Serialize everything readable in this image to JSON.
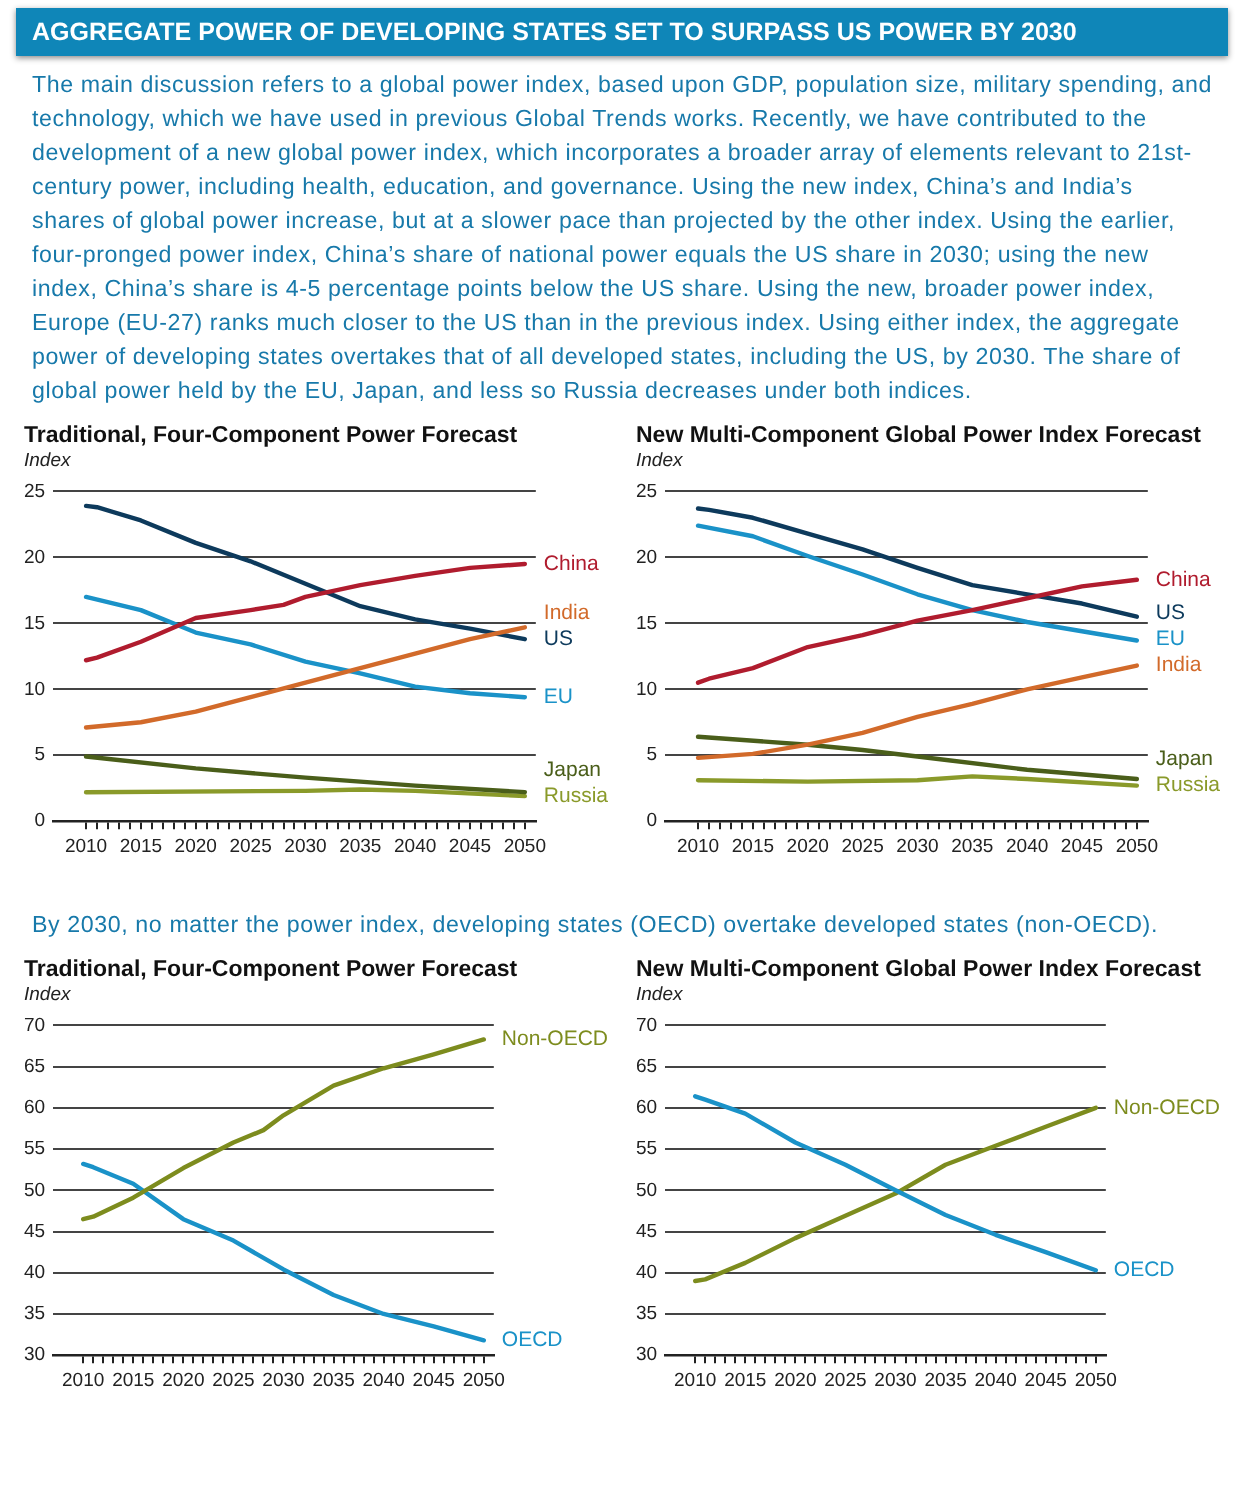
{
  "chart_data": [
    {
      "type": "line",
      "title": "Traditional, Four-Component Power Forecast",
      "ylabel": "Index",
      "annotations": [
        "AGGREGATE POWER OF DEVELOPING STATES SET TO SURPASS US POWER BY 2030",
        "The main discussion refers to a global power index, based upon GDP, population size, military spending, and technology, which we have used in previous Global Trends works. Recently, we have contributed to the development of a new global power index, which incorporates a broader array of elements relevant to 21st-century power, including health, education, and governance. Using the new index, China’s and India’s shares of global power increase, but at a slower pace than projected by the other index. Using the earlier, four-pronged power index, China’s share of national power equals the US share in 2030; using the new index, China’s share is 4-5 percentage points below the US share. Using the new, broader power index, Europe (EU-27) ranks much closer to the US than in the previous index. Using either index, the aggregate power of developing states overtakes that of all developed states, including the US, by 2030. The share of global power held by the EU, Japan, and less so Russia decreases under both indices."
      ],
      "xlim": [
        2007,
        2051
      ],
      "ylim": [
        0,
        25
      ],
      "yticks": [
        0,
        5,
        10,
        15,
        20,
        25
      ],
      "xticks": [
        {
          "value": 2010,
          "label": "2010"
        },
        {
          "value": 2011,
          "label": null
        },
        {
          "value": 2012,
          "label": null
        },
        {
          "value": 2013,
          "label": null
        },
        {
          "value": 2014,
          "label": null
        },
        {
          "value": 2015,
          "label": "2015"
        },
        {
          "value": 2016,
          "label": null
        },
        {
          "value": 2017,
          "label": null
        },
        {
          "value": 2018,
          "label": null
        },
        {
          "value": 2019,
          "label": null
        },
        {
          "value": 2020,
          "label": "2020"
        },
        {
          "value": 2021,
          "label": null
        },
        {
          "value": 2022,
          "label": null
        },
        {
          "value": 2023,
          "label": null
        },
        {
          "value": 2024,
          "label": null
        },
        {
          "value": 2025,
          "label": "2025"
        },
        {
          "value": 2026,
          "label": null
        },
        {
          "value": 2027,
          "label": null
        },
        {
          "value": 2028,
          "label": null
        },
        {
          "value": 2029,
          "label": null
        },
        {
          "value": 2030,
          "label": "2030"
        },
        {
          "value": 2031,
          "label": null
        },
        {
          "value": 2032,
          "label": null
        },
        {
          "value": 2033,
          "label": null
        },
        {
          "value": 2034,
          "label": null
        },
        {
          "value": 2035,
          "label": "2035"
        },
        {
          "value": 2036,
          "label": null
        },
        {
          "value": 2037,
          "label": null
        },
        {
          "value": 2038,
          "label": null
        },
        {
          "value": 2039,
          "label": null
        },
        {
          "value": 2040,
          "label": "2040"
        },
        {
          "value": 2041,
          "label": null
        },
        {
          "value": 2042,
          "label": null
        },
        {
          "value": 2043,
          "label": null
        },
        {
          "value": 2044,
          "label": null
        },
        {
          "value": 2045,
          "label": "2045"
        },
        {
          "value": 2046,
          "label": null
        },
        {
          "value": 2047,
          "label": null
        },
        {
          "value": 2048,
          "label": null
        },
        {
          "value": 2049,
          "label": null
        },
        {
          "value": 2050,
          "label": "2050"
        }
      ],
      "grid": "y",
      "series": [
        {
          "name": "China",
          "color": "#b01c2e",
          "x": [
            2010,
            2011,
            2015,
            2020,
            2025,
            2028,
            2030,
            2035,
            2040,
            2045,
            2050
          ],
          "values": [
            12.2,
            12.4,
            13.6,
            15.4,
            16.0,
            16.4,
            17.0,
            17.9,
            18.6,
            19.2,
            19.5
          ]
        },
        {
          "name": "India",
          "color": "#d26a2a",
          "x": [
            2010,
            2015,
            2020,
            2025,
            2030,
            2035,
            2040,
            2045,
            2050
          ],
          "values": [
            7.1,
            7.5,
            8.3,
            9.4,
            10.5,
            11.6,
            12.7,
            13.8,
            14.7
          ]
        },
        {
          "name": "US",
          "color": "#0d3a5c",
          "x": [
            2010,
            2011,
            2015,
            2020,
            2025,
            2030,
            2035,
            2040,
            2045,
            2050
          ],
          "values": [
            23.9,
            23.8,
            22.8,
            21.1,
            19.7,
            18.0,
            16.3,
            15.3,
            14.6,
            13.8
          ]
        },
        {
          "name": "EU",
          "color": "#1a92c8",
          "x": [
            2010,
            2015,
            2020,
            2025,
            2030,
            2035,
            2040,
            2045,
            2050
          ],
          "values": [
            17.0,
            16.0,
            14.3,
            13.4,
            12.1,
            11.2,
            10.2,
            9.7,
            9.4
          ]
        },
        {
          "name": "Japan",
          "color": "#4a5e1a",
          "x": [
            2010,
            2020,
            2030,
            2040,
            2050
          ],
          "values": [
            4.9,
            4.0,
            3.3,
            2.7,
            2.2
          ]
        },
        {
          "name": "Russia",
          "color": "#8a9a2a",
          "x": [
            2010,
            2030,
            2035,
            2040,
            2050
          ],
          "values": [
            2.2,
            2.3,
            2.4,
            2.3,
            1.9
          ]
        }
      ]
    },
    {
      "type": "line",
      "title": "New Multi-Component Global Power Index Forecast",
      "ylabel": "Index",
      "xlim": [
        2007,
        2051
      ],
      "ylim": [
        0,
        25
      ],
      "yticks": [
        0,
        5,
        10,
        15,
        20,
        25
      ],
      "xticks": [
        {
          "value": 2010,
          "label": "2010"
        },
        {
          "value": 2011,
          "label": null
        },
        {
          "value": 2012,
          "label": null
        },
        {
          "value": 2013,
          "label": null
        },
        {
          "value": 2014,
          "label": null
        },
        {
          "value": 2015,
          "label": "2015"
        },
        {
          "value": 2016,
          "label": null
        },
        {
          "value": 2017,
          "label": null
        },
        {
          "value": 2018,
          "label": null
        },
        {
          "value": 2019,
          "label": null
        },
        {
          "value": 2020,
          "label": "2020"
        },
        {
          "value": 2021,
          "label": null
        },
        {
          "value": 2022,
          "label": null
        },
        {
          "value": 2023,
          "label": null
        },
        {
          "value": 2024,
          "label": null
        },
        {
          "value": 2025,
          "label": "2025"
        },
        {
          "value": 2026,
          "label": null
        },
        {
          "value": 2027,
          "label": null
        },
        {
          "value": 2028,
          "label": null
        },
        {
          "value": 2029,
          "label": null
        },
        {
          "value": 2030,
          "label": "2030"
        },
        {
          "value": 2031,
          "label": null
        },
        {
          "value": 2032,
          "label": null
        },
        {
          "value": 2033,
          "label": null
        },
        {
          "value": 2034,
          "label": null
        },
        {
          "value": 2035,
          "label": "2035"
        },
        {
          "value": 2036,
          "label": null
        },
        {
          "value": 2037,
          "label": null
        },
        {
          "value": 2038,
          "label": null
        },
        {
          "value": 2039,
          "label": null
        },
        {
          "value": 2040,
          "label": "2040"
        },
        {
          "value": 2041,
          "label": null
        },
        {
          "value": 2042,
          "label": null
        },
        {
          "value": 2043,
          "label": null
        },
        {
          "value": 2044,
          "label": null
        },
        {
          "value": 2045,
          "label": "2045"
        },
        {
          "value": 2046,
          "label": null
        },
        {
          "value": 2047,
          "label": null
        },
        {
          "value": 2048,
          "label": null
        },
        {
          "value": 2049,
          "label": null
        },
        {
          "value": 2050,
          "label": "2050"
        }
      ],
      "grid": "y",
      "series": [
        {
          "name": "China",
          "color": "#b01c2e",
          "x": [
            2010,
            2011,
            2015,
            2020,
            2025,
            2030,
            2035,
            2040,
            2045,
            2050
          ],
          "values": [
            10.5,
            10.8,
            11.6,
            13.2,
            14.1,
            15.2,
            16.0,
            16.9,
            17.8,
            18.3
          ]
        },
        {
          "name": "US",
          "color": "#0d3a5c",
          "x": [
            2010,
            2011,
            2015,
            2020,
            2025,
            2030,
            2035,
            2040,
            2045,
            2050
          ],
          "values": [
            23.7,
            23.6,
            23.0,
            21.8,
            20.6,
            19.2,
            17.9,
            17.2,
            16.5,
            15.5
          ]
        },
        {
          "name": "EU",
          "color": "#1a92c8",
          "x": [
            2010,
            2015,
            2020,
            2025,
            2030,
            2035,
            2040,
            2045,
            2050
          ],
          "values": [
            22.4,
            21.6,
            20.1,
            18.7,
            17.2,
            16.0,
            15.1,
            14.4,
            13.7
          ]
        },
        {
          "name": "India",
          "color": "#d26a2a",
          "x": [
            2010,
            2015,
            2020,
            2025,
            2030,
            2035,
            2040,
            2045,
            2050
          ],
          "values": [
            4.8,
            5.1,
            5.8,
            6.7,
            7.9,
            8.9,
            10.0,
            10.9,
            11.8
          ]
        },
        {
          "name": "Japan",
          "color": "#4a5e1a",
          "x": [
            2010,
            2020,
            2025,
            2030,
            2040,
            2050
          ],
          "values": [
            6.4,
            5.8,
            5.4,
            4.9,
            3.9,
            3.2
          ]
        },
        {
          "name": "Russia",
          "color": "#8a9a2a",
          "x": [
            2010,
            2020,
            2030,
            2035,
            2040,
            2050
          ],
          "values": [
            3.1,
            3.0,
            3.1,
            3.4,
            3.2,
            2.7
          ]
        }
      ]
    },
    {
      "type": "line",
      "title": "Traditional, Four-Component Power Forecast",
      "ylabel": "Index",
      "annotations": [
        "By 2030, no matter the power index, developing states (OECD) overtake developed states (non-OECD)."
      ],
      "xlim": [
        2007,
        2051
      ],
      "ylim": [
        30,
        70
      ],
      "yticks": [
        30,
        35,
        40,
        45,
        50,
        55,
        60,
        65,
        70
      ],
      "xticks": [
        {
          "value": 2010,
          "label": "2010"
        },
        {
          "value": 2011,
          "label": null
        },
        {
          "value": 2012,
          "label": null
        },
        {
          "value": 2013,
          "label": null
        },
        {
          "value": 2014,
          "label": null
        },
        {
          "value": 2015,
          "label": "2015"
        },
        {
          "value": 2016,
          "label": null
        },
        {
          "value": 2017,
          "label": null
        },
        {
          "value": 2018,
          "label": null
        },
        {
          "value": 2019,
          "label": null
        },
        {
          "value": 2020,
          "label": "2020"
        },
        {
          "value": 2021,
          "label": null
        },
        {
          "value": 2022,
          "label": null
        },
        {
          "value": 2023,
          "label": null
        },
        {
          "value": 2024,
          "label": null
        },
        {
          "value": 2025,
          "label": "2025"
        },
        {
          "value": 2026,
          "label": null
        },
        {
          "value": 2027,
          "label": null
        },
        {
          "value": 2028,
          "label": null
        },
        {
          "value": 2029,
          "label": null
        },
        {
          "value": 2030,
          "label": "2030"
        },
        {
          "value": 2031,
          "label": null
        },
        {
          "value": 2032,
          "label": null
        },
        {
          "value": 2033,
          "label": null
        },
        {
          "value": 2034,
          "label": null
        },
        {
          "value": 2035,
          "label": "2035"
        },
        {
          "value": 2036,
          "label": null
        },
        {
          "value": 2037,
          "label": null
        },
        {
          "value": 2038,
          "label": null
        },
        {
          "value": 2039,
          "label": null
        },
        {
          "value": 2040,
          "label": "2040"
        },
        {
          "value": 2041,
          "label": null
        },
        {
          "value": 2042,
          "label": null
        },
        {
          "value": 2043,
          "label": null
        },
        {
          "value": 2044,
          "label": null
        },
        {
          "value": 2045,
          "label": "2045"
        },
        {
          "value": 2046,
          "label": null
        },
        {
          "value": 2047,
          "label": null
        },
        {
          "value": 2048,
          "label": null
        },
        {
          "value": 2049,
          "label": null
        },
        {
          "value": 2050,
          "label": "2050"
        }
      ],
      "grid": "y",
      "series": [
        {
          "name": "Non-OECD",
          "color": "#7d8c1e",
          "x": [
            2010,
            2011,
            2015,
            2020,
            2025,
            2028,
            2030,
            2035,
            2040,
            2045,
            2050
          ],
          "values": [
            46.5,
            46.8,
            49.1,
            52.7,
            55.8,
            57.3,
            59.1,
            62.7,
            64.8,
            66.5,
            68.3
          ]
        },
        {
          "name": "OECD",
          "color": "#1a92c8",
          "x": [
            2010,
            2011,
            2015,
            2020,
            2025,
            2030,
            2035,
            2040,
            2045,
            2050
          ],
          "values": [
            53.2,
            52.8,
            50.8,
            46.5,
            43.9,
            40.4,
            37.3,
            35.0,
            33.5,
            31.8
          ]
        }
      ]
    },
    {
      "type": "line",
      "title": "New Multi-Component Global Power Index Forecast",
      "ylabel": "Index",
      "xlim": [
        2007,
        2051
      ],
      "ylim": [
        30,
        70
      ],
      "yticks": [
        30,
        35,
        40,
        45,
        50,
        55,
        60,
        65,
        70
      ],
      "xticks": [
        {
          "value": 2010,
          "label": "2010"
        },
        {
          "value": 2011,
          "label": null
        },
        {
          "value": 2012,
          "label": null
        },
        {
          "value": 2013,
          "label": null
        },
        {
          "value": 2014,
          "label": null
        },
        {
          "value": 2015,
          "label": "2015"
        },
        {
          "value": 2016,
          "label": null
        },
        {
          "value": 2017,
          "label": null
        },
        {
          "value": 2018,
          "label": null
        },
        {
          "value": 2019,
          "label": null
        },
        {
          "value": 2020,
          "label": "2020"
        },
        {
          "value": 2021,
          "label": null
        },
        {
          "value": 2022,
          "label": null
        },
        {
          "value": 2023,
          "label": null
        },
        {
          "value": 2024,
          "label": null
        },
        {
          "value": 2025,
          "label": "2025"
        },
        {
          "value": 2026,
          "label": null
        },
        {
          "value": 2027,
          "label": null
        },
        {
          "value": 2028,
          "label": null
        },
        {
          "value": 2029,
          "label": null
        },
        {
          "value": 2030,
          "label": "2030"
        },
        {
          "value": 2031,
          "label": null
        },
        {
          "value": 2032,
          "label": null
        },
        {
          "value": 2033,
          "label": null
        },
        {
          "value": 2034,
          "label": null
        },
        {
          "value": 2035,
          "label": "2035"
        },
        {
          "value": 2036,
          "label": null
        },
        {
          "value": 2037,
          "label": null
        },
        {
          "value": 2038,
          "label": null
        },
        {
          "value": 2039,
          "label": null
        },
        {
          "value": 2040,
          "label": "2040"
        },
        {
          "value": 2041,
          "label": null
        },
        {
          "value": 2042,
          "label": null
        },
        {
          "value": 2043,
          "label": null
        },
        {
          "value": 2044,
          "label": null
        },
        {
          "value": 2045,
          "label": "2045"
        },
        {
          "value": 2046,
          "label": null
        },
        {
          "value": 2047,
          "label": null
        },
        {
          "value": 2048,
          "label": null
        },
        {
          "value": 2049,
          "label": null
        },
        {
          "value": 2050,
          "label": "2050"
        }
      ],
      "grid": "y",
      "series": [
        {
          "name": "OECD",
          "color": "#1a92c8",
          "x": [
            2010,
            2011,
            2015,
            2020,
            2025,
            2030,
            2035,
            2040,
            2045,
            2050
          ],
          "values": [
            61.4,
            61.0,
            59.3,
            55.8,
            53.1,
            50.0,
            47.0,
            44.6,
            42.5,
            40.3
          ]
        },
        {
          "name": "Non-OECD",
          "color": "#7d8c1e",
          "x": [
            2010,
            2011,
            2015,
            2020,
            2025,
            2030,
            2035,
            2040,
            2045,
            2050
          ],
          "values": [
            39.0,
            39.2,
            41.2,
            44.2,
            46.9,
            49.6,
            53.1,
            55.4,
            57.7,
            60.0
          ]
        }
      ]
    }
  ]
}
